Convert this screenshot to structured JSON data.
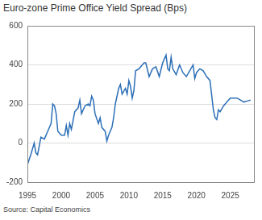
{
  "chart_data": {
    "type": "line",
    "title": "Euro-zone Prime Office Yield Spread (Bps)",
    "source": "Source: Capital Economics",
    "color": "#2c6fb7",
    "grid": true,
    "x": [
      1995.0,
      1995.5,
      1996.0,
      1996.25,
      1996.5,
      1997.0,
      1997.5,
      1998.0,
      1998.5,
      1998.75,
      1999.0,
      1999.25,
      1999.5,
      2000.0,
      2000.5,
      2000.75,
      2001.0,
      2001.25,
      2001.5,
      2002.0,
      2002.5,
      2002.75,
      2003.0,
      2003.5,
      2004.0,
      2004.25,
      2004.5,
      2004.75,
      2005.0,
      2005.5,
      2005.75,
      2006.0,
      2006.5,
      2006.75,
      2007.0,
      2007.5,
      2007.75,
      2008.0,
      2008.5,
      2008.75,
      2009.0,
      2009.5,
      2009.75,
      2010.0,
      2010.25,
      2010.5,
      2010.75,
      2011.0,
      2011.5,
      2012.0,
      2012.25,
      2012.5,
      2013.0,
      2013.5,
      2014.0,
      2014.5,
      2015.0,
      2015.5,
      2015.75,
      2016.0,
      2016.25,
      2016.5,
      2017.0,
      2017.5,
      2018.0,
      2018.5,
      2019.0,
      2019.5,
      2019.75,
      2020.0,
      2020.5,
      2021.0,
      2021.5,
      2022.0,
      2022.5,
      2022.75,
      2023.0,
      2023.25,
      2023.5,
      2024.0,
      2024.5,
      2025.0,
      2026.0,
      2026.5,
      2027.0,
      2027.5,
      2028.0
    ],
    "values": [
      -110,
      -60,
      0,
      -50,
      -60,
      30,
      20,
      60,
      100,
      200,
      190,
      150,
      60,
      40,
      40,
      90,
      40,
      100,
      70,
      160,
      180,
      220,
      150,
      190,
      200,
      190,
      240,
      220,
      150,
      100,
      130,
      80,
      60,
      10,
      40,
      80,
      130,
      200,
      280,
      300,
      250,
      280,
      250,
      320,
      290,
      230,
      270,
      370,
      380,
      400,
      410,
      410,
      340,
      380,
      390,
      340,
      410,
      450,
      380,
      370,
      440,
      380,
      350,
      400,
      360,
      340,
      370,
      400,
      330,
      360,
      380,
      370,
      340,
      320,
      170,
      130,
      120,
      170,
      160,
      190,
      210,
      230,
      230,
      220,
      210,
      215,
      220
    ],
    "xlim": [
      1995,
      2028.5
    ],
    "xticks": [
      1995,
      2000,
      2005,
      2010,
      2015,
      2020,
      2025
    ],
    "ylim": [
      -200,
      600
    ],
    "yticks": [
      -200,
      0,
      200,
      400,
      600
    ]
  }
}
